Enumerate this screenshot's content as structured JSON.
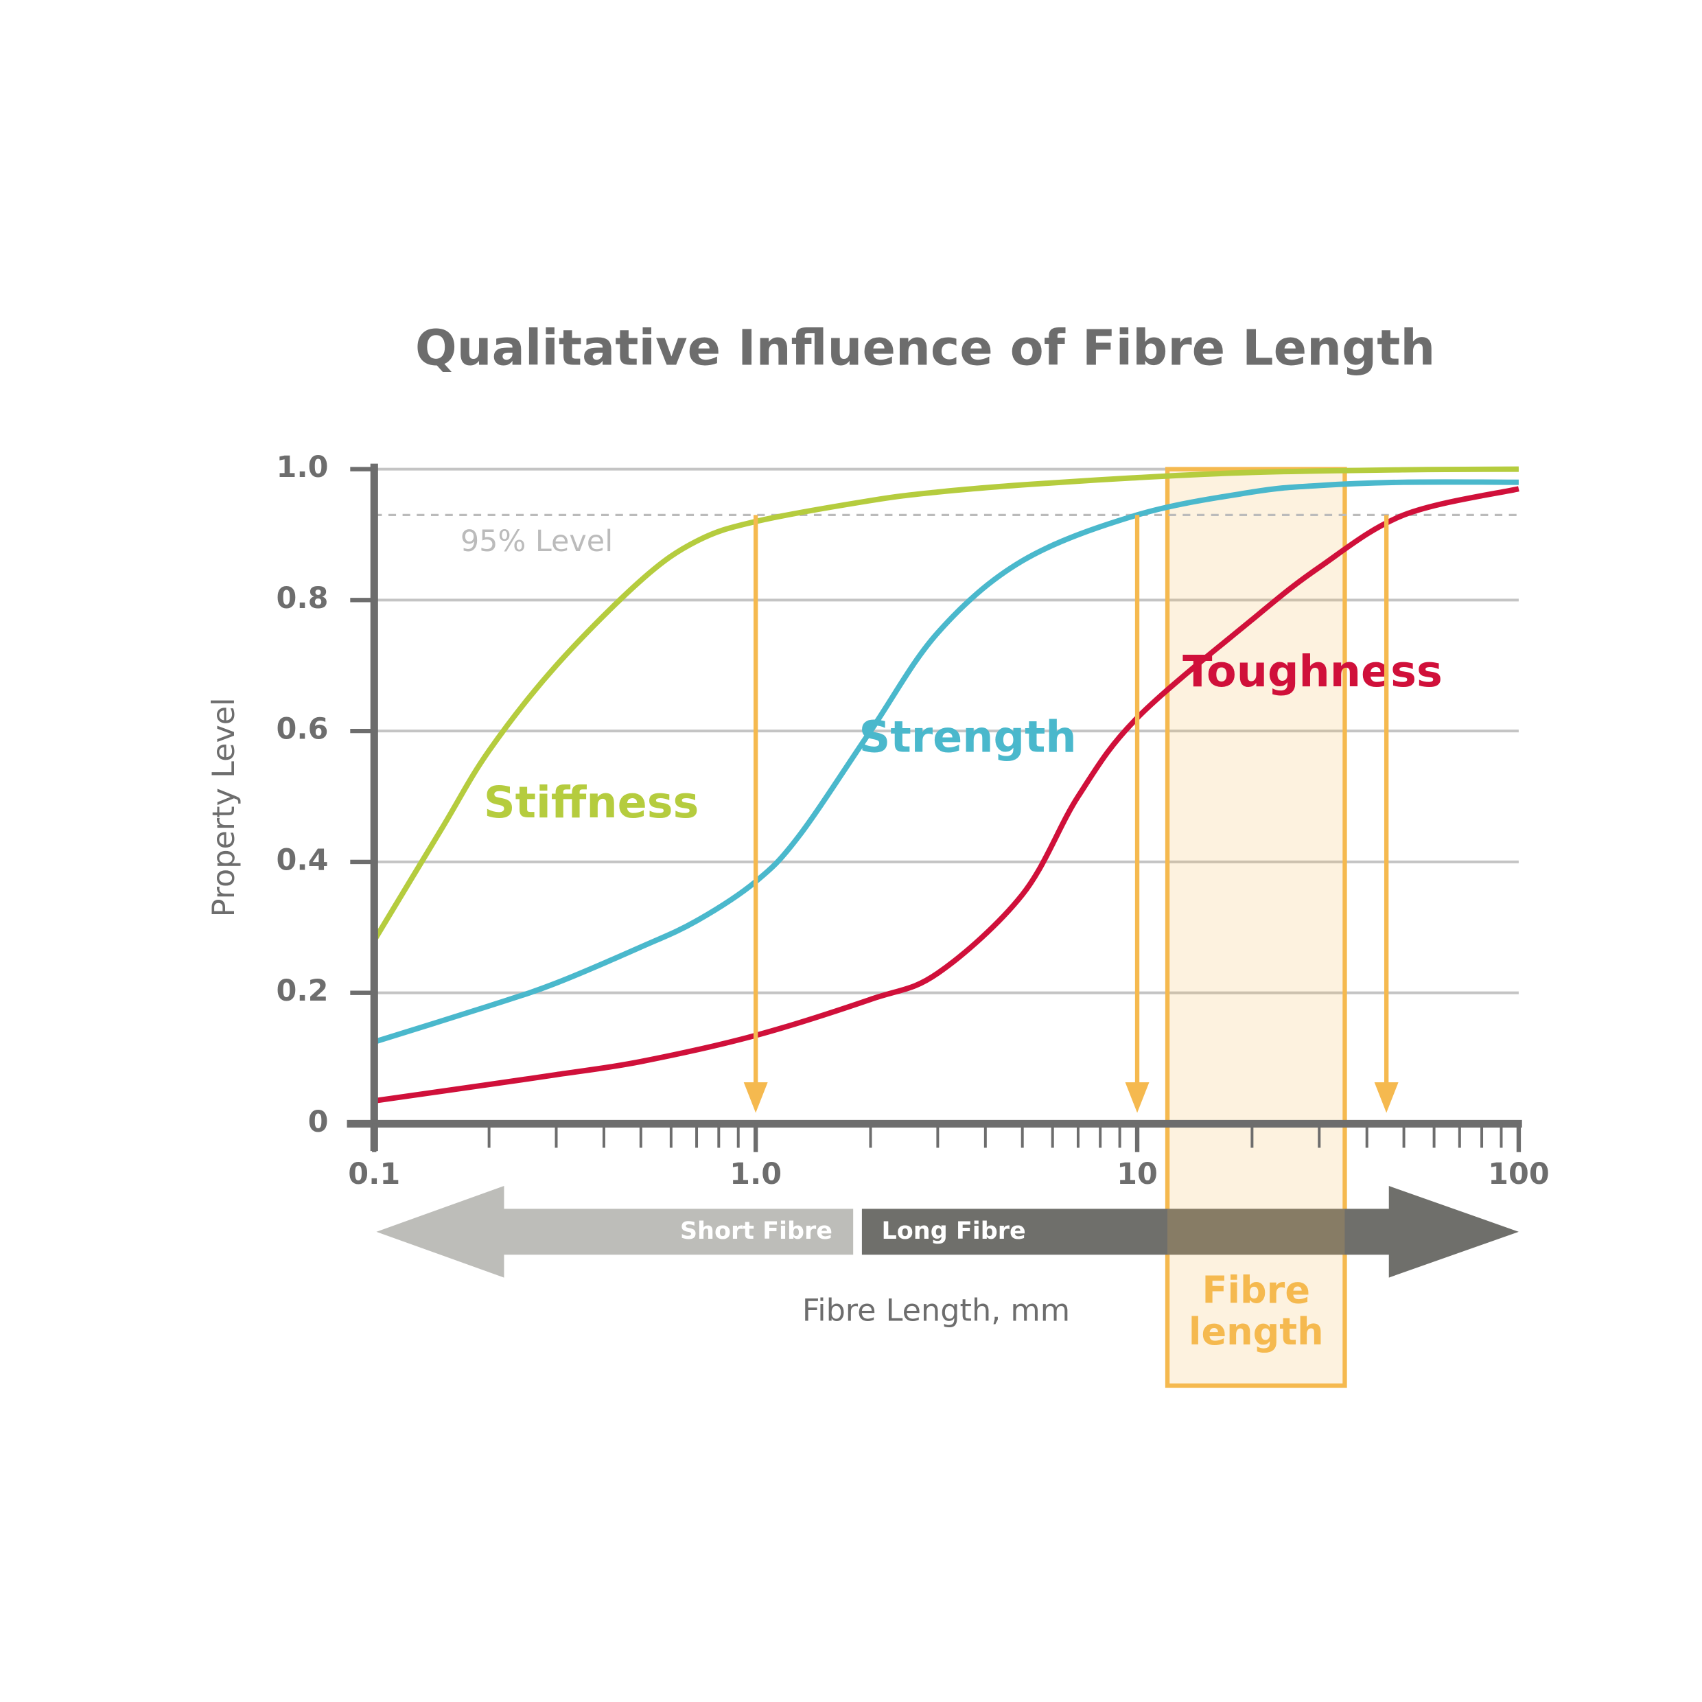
{
  "chart_data": {
    "type": "line",
    "title": "Qualitative Influence of Fibre Length",
    "y_label": "Property Level",
    "x_label": "Fibre Length, mm",
    "x_scale": "log",
    "grid": true,
    "xlim": [
      0.1,
      100
    ],
    "ylim": [
      0,
      1
    ],
    "xticks": [
      0.1,
      {
        "value": 1,
        "label": "1.0"
      },
      10,
      100
    ],
    "yticks": [
      0,
      0.2,
      0.4,
      0.6,
      0.8,
      {
        "value": 1,
        "label": "1.0"
      }
    ],
    "series": [
      {
        "name": "Stiffness",
        "color": "#b5cc3e",
        "x": [
          0.1,
          0.15,
          0.2,
          0.3,
          0.5,
          0.7,
          1,
          2,
          3,
          5,
          10,
          20,
          50,
          100
        ],
        "values": [
          0.28,
          0.45,
          0.57,
          0.7,
          0.83,
          0.89,
          0.92,
          0.952,
          0.965,
          0.976,
          0.987,
          0.995,
          0.999,
          1.0
        ]
      },
      {
        "name": "Strength",
        "color": "#4ab8cc",
        "x": [
          0.1,
          0.2,
          0.3,
          0.5,
          0.7,
          1,
          1.3,
          2,
          3,
          5,
          10,
          20,
          30,
          50,
          100
        ],
        "values": [
          0.125,
          0.18,
          0.215,
          0.27,
          0.31,
          0.37,
          0.44,
          0.6,
          0.75,
          0.86,
          0.93,
          0.965,
          0.975,
          0.98,
          0.98
        ]
      },
      {
        "name": "Toughness",
        "color": "#d0103a",
        "x": [
          0.1,
          0.2,
          0.3,
          0.5,
          1,
          2,
          3,
          5,
          7,
          10,
          20,
          30,
          50,
          100
        ],
        "values": [
          0.035,
          0.06,
          0.075,
          0.095,
          0.135,
          0.19,
          0.23,
          0.35,
          0.5,
          0.62,
          0.77,
          0.85,
          0.93,
          0.97
        ]
      }
    ],
    "reference_line": {
      "label": "95% Level",
      "value": 0.93
    },
    "arrows": {
      "color": "#f5b94f",
      "x": [
        1,
        10,
        45
      ]
    },
    "band": {
      "label_lines": [
        "Fibre",
        "length"
      ],
      "range": [
        12,
        35
      ],
      "color": "#f5b94f"
    },
    "fibre_classes": [
      "Short Fibre",
      "Long Fibre"
    ]
  }
}
